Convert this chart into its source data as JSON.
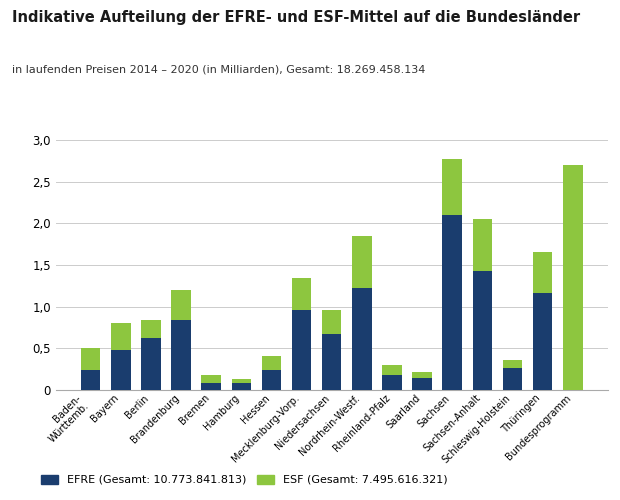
{
  "title": "Indikative Aufteilung der EFRE- und ESF-Mittel auf die Bundesländer",
  "subtitle": "in laufenden Preisen 2014 – 2020 (in Milliarden), Gesamt: 18.269.458.134",
  "categories": [
    "Baden-\nWürttemb.",
    "Bayern",
    "Berlin",
    "Brandenburg",
    "Bremen",
    "Hamburg",
    "Hessen",
    "Mecklenburg-Vorp.",
    "Niedersachsen",
    "Nordrhein-Westf.",
    "Rheinland-Pfalz",
    "Saarland",
    "Sachsen",
    "Sachsen-Anhalt",
    "Schleswig-Holstein",
    "Thüringen",
    "Bundesprogramm"
  ],
  "efre_values": [
    0.24,
    0.48,
    0.62,
    0.84,
    0.09,
    0.08,
    0.24,
    0.96,
    0.67,
    1.22,
    0.18,
    0.15,
    2.1,
    1.43,
    0.26,
    1.16,
    0.0
  ],
  "esf_values": [
    0.27,
    0.32,
    0.22,
    0.36,
    0.09,
    0.05,
    0.17,
    0.38,
    0.29,
    0.63,
    0.12,
    0.07,
    0.67,
    0.62,
    0.1,
    0.5,
    2.7
  ],
  "efre_color": "#1a3d6e",
  "esf_color": "#8dc63f",
  "ylim": [
    0,
    3.0
  ],
  "yticks": [
    0,
    0.5,
    1.0,
    1.5,
    2.0,
    2.5,
    3.0
  ],
  "ytick_labels": [
    "0",
    "0,5",
    "1,0",
    "1,5",
    "2,0",
    "2,5",
    "3,0"
  ],
  "legend_efre": "EFRE (Gesamt: 10.773.841.813)",
  "legend_esf": "ESF (Gesamt: 7.495.616.321)",
  "background_color": "#ffffff",
  "title_fontsize": 10.5,
  "subtitle_fontsize": 8
}
